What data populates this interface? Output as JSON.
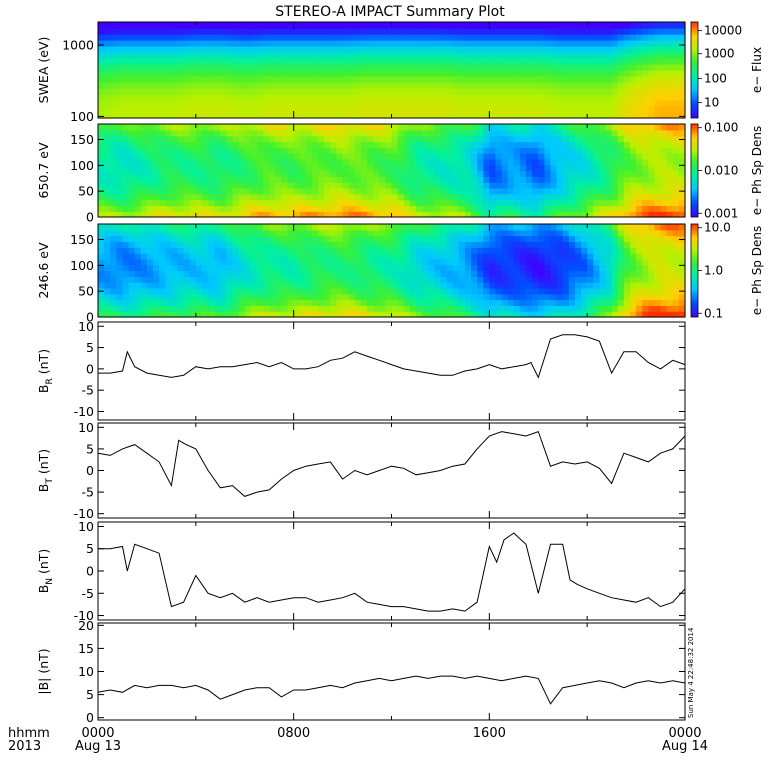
{
  "title": "STEREO-A IMPACT Summary Plot",
  "x_axis": {
    "header_top": "hhmm",
    "header_bottom": "2013",
    "ticks": [
      {
        "top": "0000",
        "bottom": "Aug 13"
      },
      {
        "top": "0800",
        "bottom": ""
      },
      {
        "top": "1600",
        "bottom": ""
      },
      {
        "top": "0000",
        "bottom": "Aug 14"
      }
    ]
  },
  "timestamp": "Sun May 4 22:48:32 2014",
  "colorbars": {
    "swea": {
      "label": "e− Flux",
      "ticks": [
        "10000",
        "1000",
        "100",
        "10"
      ]
    },
    "pa1": {
      "label": "e− Ph Sp Dens",
      "ticks": [
        "0.100",
        "0.010",
        "0.001"
      ]
    },
    "pa2": {
      "label": "e− Ph Sp Dens",
      "ticks": [
        "10.0",
        "1.0",
        "0.1"
      ]
    }
  },
  "chart_data": [
    {
      "type": "heatmap",
      "id": "swea",
      "ylabel": "SWEA (eV)",
      "yscale": "log",
      "ylim": [
        95,
        2100
      ],
      "yticks": [
        "1000",
        "100"
      ],
      "ytick_values": [
        1000,
        100
      ],
      "colorscale": "log",
      "crange": [
        3,
        30000
      ],
      "x_hours": [
        0,
        1,
        2,
        3,
        4,
        5,
        6,
        7,
        8,
        9,
        10,
        11,
        12,
        13,
        14,
        15,
        16,
        17,
        18,
        19,
        20,
        21,
        22,
        23,
        24
      ],
      "flux_at_100eV": [
        2000,
        2500,
        2500,
        2500,
        3000,
        3000,
        2500,
        3000,
        3000,
        3000,
        3000,
        3500,
        3500,
        3500,
        3500,
        3000,
        3000,
        3000,
        3000,
        2500,
        2500,
        2500,
        6000,
        10000,
        10000
      ]
    },
    {
      "type": "heatmap",
      "id": "pa1",
      "ylabel": "650.7 eV",
      "ylim": [
        0,
        180
      ],
      "yticks": [
        "150",
        "100",
        "50",
        "0"
      ],
      "ytick_values": [
        150,
        100,
        50,
        0
      ],
      "colorscale": "log",
      "crange": [
        0.001,
        0.1
      ],
      "x_hours": [
        0,
        1,
        2,
        3,
        4,
        5,
        6,
        7,
        8,
        9,
        10,
        11,
        12,
        13,
        14,
        15,
        16,
        17,
        18,
        19,
        20,
        21,
        22,
        23,
        24
      ],
      "dens_at_90deg": [
        0.007,
        0.006,
        0.008,
        0.01,
        0.01,
        0.009,
        0.012,
        0.015,
        0.014,
        0.016,
        0.018,
        0.016,
        0.014,
        0.008,
        0.007,
        0.006,
        0.002,
        0.003,
        0.002,
        0.004,
        0.006,
        0.01,
        0.02,
        0.025,
        0.025
      ]
    },
    {
      "type": "heatmap",
      "id": "pa2",
      "ylabel": "246.6 eV",
      "ylim": [
        0,
        180
      ],
      "yticks": [
        "150",
        "100",
        "50",
        "0"
      ],
      "ytick_values": [
        150,
        100,
        50,
        0
      ],
      "colorscale": "log",
      "crange": [
        0.1,
        10
      ],
      "x_hours": [
        0,
        1,
        2,
        3,
        4,
        5,
        6,
        7,
        8,
        9,
        10,
        11,
        12,
        13,
        14,
        15,
        16,
        17,
        18,
        19,
        20,
        21,
        22,
        23,
        24
      ],
      "dens_at_90deg": [
        0.3,
        0.25,
        0.3,
        0.35,
        0.4,
        0.35,
        0.6,
        0.8,
        0.8,
        1.0,
        1.1,
        0.9,
        0.8,
        0.5,
        0.4,
        0.3,
        0.15,
        0.15,
        0.12,
        0.15,
        0.25,
        0.5,
        2.0,
        3.0,
        3.0
      ]
    },
    {
      "type": "line",
      "id": "br",
      "ylabel_main": "B",
      "ylabel_sub": "R",
      "ylabel_unit": " (nT)",
      "ylim": [
        -12,
        11
      ],
      "yticks": [
        "10",
        "5",
        "0",
        "-5",
        "-10"
      ],
      "ytick_values": [
        10,
        5,
        0,
        -5,
        -10
      ],
      "x_hours": [
        0,
        0.5,
        1,
        1.2,
        1.5,
        2,
        2.5,
        3,
        3.5,
        4,
        4.5,
        5,
        5.5,
        6,
        6.5,
        7,
        7.5,
        8,
        8.5,
        9,
        9.5,
        10,
        10.5,
        11,
        11.5,
        12,
        12.5,
        13,
        13.5,
        14,
        14.5,
        15,
        15.5,
        16,
        16.5,
        17,
        17.5,
        17.7,
        18,
        18.5,
        19,
        19.5,
        20,
        20.5,
        21,
        21.5,
        22,
        22.5,
        23,
        23.5,
        24
      ],
      "values": [
        -1,
        -1,
        -0.5,
        4,
        0.5,
        -1,
        -1.5,
        -2,
        -1.5,
        0.5,
        0,
        0.5,
        0.5,
        1,
        1.5,
        0.5,
        1.5,
        0,
        0,
        0.5,
        2,
        2.5,
        4,
        3,
        2,
        1,
        0,
        -0.5,
        -1,
        -1.5,
        -1.5,
        -0.5,
        0,
        1,
        0,
        0.5,
        1,
        1.5,
        -2,
        7,
        8,
        8,
        7.5,
        6.5,
        -1,
        4,
        4,
        1.5,
        0,
        2,
        1
      ]
    },
    {
      "type": "line",
      "id": "bt",
      "ylabel_main": "B",
      "ylabel_sub": "T",
      "ylabel_unit": " (nT)",
      "ylim": [
        -11,
        11
      ],
      "yticks": [
        "10",
        "5",
        "0",
        "-5",
        "-10"
      ],
      "ytick_values": [
        10,
        5,
        0,
        -5,
        -10
      ],
      "x_hours": [
        0,
        0.5,
        1,
        1.5,
        2,
        2.5,
        3,
        3.3,
        3.6,
        4,
        4.5,
        5,
        5.5,
        6,
        6.5,
        7,
        7.5,
        8,
        8.5,
        9,
        9.5,
        10,
        10.5,
        11,
        11.5,
        12,
        12.5,
        13,
        13.5,
        14,
        14.5,
        15,
        15.5,
        16,
        16.5,
        17,
        17.5,
        18,
        18.5,
        19,
        19.5,
        20,
        20.5,
        21,
        21.5,
        22,
        22.5,
        23,
        23.5,
        24
      ],
      "values": [
        4,
        3.5,
        5,
        6,
        4,
        2,
        -3.5,
        7,
        6,
        5,
        0,
        -4,
        -3.5,
        -6,
        -5,
        -4.5,
        -2,
        0,
        1,
        1.5,
        2,
        -2,
        0,
        -1,
        0,
        1,
        0.5,
        -1,
        -0.5,
        0,
        1,
        1.5,
        5,
        8,
        9,
        8.5,
        8,
        9,
        1,
        2,
        1.5,
        2,
        0.5,
        -3,
        4,
        3,
        2,
        4,
        5,
        8
      ]
    },
    {
      "type": "line",
      "id": "bn",
      "ylabel_main": "B",
      "ylabel_sub": "N",
      "ylabel_unit": " (nT)",
      "ylim": [
        -11,
        11
      ],
      "yticks": [
        "10",
        "5",
        "0",
        "-5",
        "-10"
      ],
      "ytick_values": [
        10,
        5,
        0,
        -5,
        -10
      ],
      "x_hours": [
        0,
        0.5,
        1,
        1.2,
        1.5,
        2,
        2.5,
        3,
        3.5,
        4,
        4.5,
        5,
        5.5,
        6,
        6.5,
        7,
        7.5,
        8,
        8.5,
        9,
        9.5,
        10,
        10.5,
        11,
        11.5,
        12,
        12.5,
        13,
        13.5,
        14,
        14.5,
        15,
        15.5,
        16,
        16.3,
        16.6,
        17,
        17.5,
        18,
        18.5,
        19,
        19.3,
        19.6,
        20,
        20.5,
        21,
        21.5,
        22,
        22.5,
        23,
        23.5,
        24
      ],
      "values": [
        5,
        5,
        5.5,
        0,
        6,
        5,
        4,
        -8,
        -7,
        -1,
        -5,
        -6,
        -5,
        -7,
        -6,
        -7,
        -6.5,
        -6,
        -6,
        -7,
        -6.5,
        -6,
        -5,
        -7,
        -7.5,
        -8,
        -8,
        -8.5,
        -9,
        -9,
        -8.5,
        -9,
        -7,
        5.5,
        2,
        7,
        8.5,
        6,
        -5,
        6,
        6,
        -2,
        -3,
        -4,
        -5,
        -6,
        -6.5,
        -7,
        -6,
        -8,
        -7,
        -4
      ]
    },
    {
      "type": "line",
      "id": "bmag",
      "ylabel_main": "|B|",
      "ylabel_sub": "",
      "ylabel_unit": " (nT)",
      "ylim": [
        -0.5,
        20.5
      ],
      "yticks": [
        "20",
        "15",
        "10",
        "5",
        "0"
      ],
      "ytick_values": [
        20,
        15,
        10,
        5,
        0
      ],
      "x_hours": [
        0,
        0.5,
        1,
        1.5,
        2,
        2.5,
        3,
        3.5,
        4,
        4.5,
        5,
        5.5,
        6,
        6.5,
        7,
        7.5,
        8,
        8.5,
        9,
        9.5,
        10,
        10.5,
        11,
        11.5,
        12,
        12.5,
        13,
        13.5,
        14,
        14.5,
        15,
        15.5,
        16,
        16.5,
        17,
        17.5,
        18,
        18.5,
        19,
        19.5,
        20,
        20.5,
        21,
        21.5,
        22,
        22.5,
        23,
        23.5,
        24
      ],
      "values": [
        5.5,
        6,
        5.5,
        7,
        6.5,
        7,
        7,
        6.5,
        7,
        6,
        4,
        5,
        6,
        6.5,
        6.5,
        4.5,
        6,
        6,
        6.5,
        7,
        6.5,
        7.5,
        8,
        8.5,
        8,
        8.5,
        9,
        8.5,
        9,
        9,
        8.5,
        9,
        8.5,
        8,
        8.5,
        9,
        8.5,
        3,
        6.5,
        7,
        7.5,
        8,
        7.5,
        6.5,
        7.5,
        8,
        7.5,
        8,
        7.5
      ]
    }
  ]
}
